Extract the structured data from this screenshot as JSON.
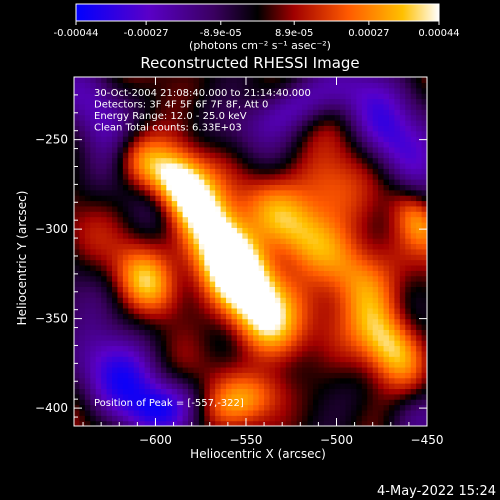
{
  "colorbar": {
    "tick_labels": [
      "-0.00044",
      "-0.00027",
      "-8.9e-05",
      "8.9e-05",
      "0.00027",
      "0.00044"
    ],
    "tick_values": [
      -0.00044,
      -0.00027,
      -8.9e-05,
      8.9e-05,
      0.00027,
      0.00044
    ],
    "range": [
      -0.00044,
      0.00044
    ],
    "unit_label": "(photons cm⁻² s⁻¹ asec⁻²)"
  },
  "chart_data": {
    "type": "heatmap",
    "title": "Reconstructed RHESSI Image",
    "xlabel": "Heliocentric X (arcsec)",
    "ylabel": "Heliocentric Y (arcsec)",
    "xlim": [
      -645,
      -450
    ],
    "ylim": [
      -410,
      -215
    ],
    "x_ticks": [
      -600,
      -550,
      -500,
      -450
    ],
    "x_tick_labels": [
      "−600",
      "−550",
      "−500",
      "−450"
    ],
    "y_ticks": [
      -250,
      -300,
      -350,
      -400
    ],
    "y_tick_labels": [
      "−250",
      "−300",
      "−350",
      "−400"
    ],
    "peak": [
      -557,
      -322
    ],
    "colormap": [
      "#0000ff",
      "#5a00c8",
      "#3a0060",
      "#000000",
      "#5a0000",
      "#c80000",
      "#ff5a00",
      "#ffb000",
      "#ffff96",
      "#ffffff"
    ],
    "info_lines": [
      "30-Oct-2004 21:08:40.000 to 21:14:40.000",
      "Detectors: 3F 4F 5F 6F 7F 8F, Att 0",
      "Energy Range: 12.0 - 25.0 keV",
      "Clean      Total counts: 6.33E+03"
    ],
    "peak_label": "Position of Peak = [-557,-322]"
  },
  "footer": {
    "date": "4-May-2022 15:24"
  }
}
